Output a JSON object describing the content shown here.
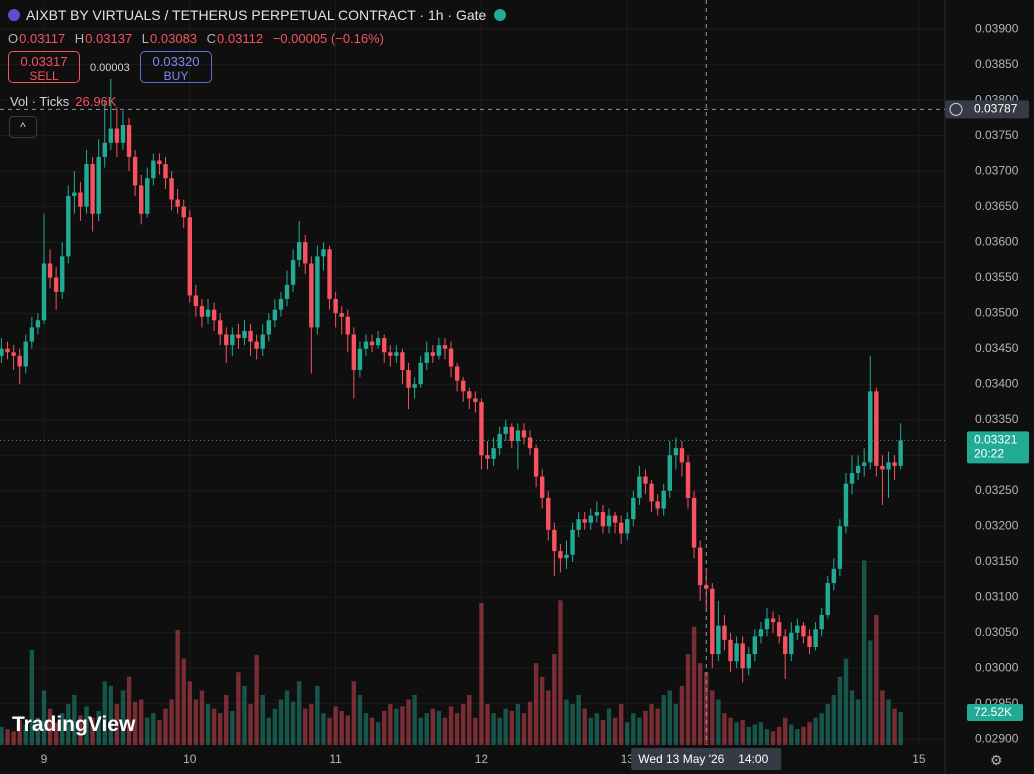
{
  "header": {
    "title": "AIXBT BY VIRTUALS / TETHERUS PERPETUAL CONTRACT · 1h · Gate",
    "ohlc": [
      {
        "label": "O",
        "value": "0.03117"
      },
      {
        "label": "H",
        "value": "0.03137"
      },
      {
        "label": "L",
        "value": "0.03083"
      },
      {
        "label": "C",
        "value": "0.03112"
      }
    ],
    "change": "−0.00005 (−0.16%)",
    "sell_price": "0.03317",
    "sell_label": "SELL",
    "spread": "0.00003",
    "buy_price": "0.03320",
    "buy_label": "BUY",
    "indicator": "Vol · Ticks",
    "indicator_value": "26.96K",
    "logo": "TradingView"
  },
  "chart_data": {
    "type": "candlestick",
    "up_color": "#22ab94",
    "down_color": "#f7525f",
    "grid": true,
    "xlim": [
      -0.24,
      155.3
    ],
    "xticks": [
      {
        "value": 7,
        "label": "9"
      },
      {
        "value": 31,
        "label": "10"
      },
      {
        "value": 55,
        "label": "11"
      },
      {
        "value": 79,
        "label": "12"
      },
      {
        "value": 103,
        "label": "13"
      },
      {
        "value": 151,
        "label": "15"
      }
    ],
    "ylim": [
      0.02892,
      0.03941
    ],
    "yticks": [
      {
        "value": 0.029,
        "label": "0.02900"
      },
      {
        "value": 0.0295,
        "label": "0.02950"
      },
      {
        "value": 0.03,
        "label": "0.03000"
      },
      {
        "value": 0.0305,
        "label": "0.03050"
      },
      {
        "value": 0.031,
        "label": "0.03100"
      },
      {
        "value": 0.0315,
        "label": "0.03150"
      },
      {
        "value": 0.032,
        "label": "0.03200"
      },
      {
        "value": 0.0325,
        "label": "0.03250"
      },
      {
        "value": 0.033,
        "label": "0.03300"
      },
      {
        "value": 0.0335,
        "label": "0.03350"
      },
      {
        "value": 0.034,
        "label": "0.03400"
      },
      {
        "value": 0.0345,
        "label": "0.03450"
      },
      {
        "value": 0.035,
        "label": "0.03500"
      },
      {
        "value": 0.0355,
        "label": "0.03550"
      },
      {
        "value": 0.036,
        "label": "0.03600"
      },
      {
        "value": 0.0365,
        "label": "0.03650"
      },
      {
        "value": 0.037,
        "label": "0.03700"
      },
      {
        "value": 0.0375,
        "label": "0.03750"
      },
      {
        "value": 0.038,
        "label": "0.03800"
      },
      {
        "value": 0.0385,
        "label": "0.03850"
      },
      {
        "value": 0.039,
        "label": "0.03900"
      }
    ],
    "y2lim": [
      0,
      420
    ],
    "open": [
      0.0344,
      0.0345,
      0.03445,
      0.0344,
      0.03425,
      0.0346,
      0.0348,
      0.0349,
      0.0357,
      0.0355,
      0.0353,
      0.0358,
      0.03665,
      0.0367,
      0.0365,
      0.0371,
      0.0364,
      0.0372,
      0.0374,
      0.0376,
      0.0374,
      0.03765,
      0.0372,
      0.0368,
      0.0364,
      0.0369,
      0.03715,
      0.0371,
      0.0369,
      0.0366,
      0.0365,
      0.03635,
      0.03525,
      0.0351,
      0.03495,
      0.03505,
      0.0349,
      0.0347,
      0.03455,
      0.0347,
      0.03465,
      0.03475,
      0.0346,
      0.0345,
      0.0347,
      0.0349,
      0.03505,
      0.0352,
      0.0354,
      0.03575,
      0.036,
      0.0357,
      0.0348,
      0.0358,
      0.0359,
      0.0352,
      0.035,
      0.03495,
      0.0347,
      0.0342,
      0.0345,
      0.0346,
      0.03455,
      0.03465,
      0.03445,
      0.0344,
      0.03445,
      0.0342,
      0.03395,
      0.034,
      0.0343,
      0.03445,
      0.0344,
      0.03455,
      0.0345,
      0.03425,
      0.03405,
      0.0339,
      0.0338,
      0.03375,
      0.033,
      0.03295,
      0.0331,
      0.0333,
      0.0334,
      0.0332,
      0.03335,
      0.03325,
      0.0331,
      0.0327,
      0.0324,
      0.03195,
      0.03165,
      0.03155,
      0.0316,
      0.03195,
      0.0321,
      0.03205,
      0.03215,
      0.0322,
      0.032,
      0.03215,
      0.03205,
      0.0319,
      0.0321,
      0.0324,
      0.0327,
      0.0326,
      0.03235,
      0.03225,
      0.0325,
      0.033,
      0.0331,
      0.0329,
      0.0324,
      0.0317,
      0.03117,
      0.03112,
      0.0302,
      0.0306,
      0.0304,
      0.0301,
      0.03035,
      0.03,
      0.0302,
      0.03045,
      0.03055,
      0.0307,
      0.03065,
      0.03045,
      0.0302,
      0.0305,
      0.0306,
      0.03045,
      0.0303,
      0.03055,
      0.03075,
      0.0312,
      0.0314,
      0.032,
      0.0326,
      0.03275,
      0.03285,
      0.0329,
      0.0339,
      0.03285,
      0.0328,
      0.0329,
      0.03285
    ],
    "high": [
      0.03465,
      0.0346,
      0.03455,
      0.0345,
      0.0347,
      0.03495,
      0.035,
      0.0364,
      0.0359,
      0.03565,
      0.036,
      0.0368,
      0.037,
      0.03685,
      0.0373,
      0.0372,
      0.03745,
      0.038,
      0.0383,
      0.0379,
      0.03785,
      0.03775,
      0.0373,
      0.03695,
      0.03705,
      0.03725,
      0.03725,
      0.0372,
      0.037,
      0.03675,
      0.0366,
      0.03645,
      0.0354,
      0.0352,
      0.0352,
      0.03515,
      0.035,
      0.0348,
      0.0348,
      0.03485,
      0.0349,
      0.03485,
      0.0347,
      0.03485,
      0.035,
      0.0352,
      0.0353,
      0.0356,
      0.0359,
      0.0363,
      0.0361,
      0.0358,
      0.03595,
      0.036,
      0.03595,
      0.0353,
      0.0351,
      0.03505,
      0.0348,
      0.0346,
      0.0347,
      0.0347,
      0.03475,
      0.0347,
      0.03455,
      0.03455,
      0.0345,
      0.0343,
      0.0341,
      0.0344,
      0.0346,
      0.03455,
      0.03465,
      0.03465,
      0.0346,
      0.0343,
      0.0341,
      0.03395,
      0.0339,
      0.0338,
      0.0332,
      0.03325,
      0.0334,
      0.0335,
      0.03345,
      0.03345,
      0.03345,
      0.03335,
      0.03315,
      0.0328,
      0.0325,
      0.03205,
      0.03175,
      0.0318,
      0.03205,
      0.0322,
      0.0322,
      0.03225,
      0.03235,
      0.0323,
      0.03225,
      0.0322,
      0.03215,
      0.0322,
      0.0325,
      0.03285,
      0.0328,
      0.03265,
      0.03245,
      0.0326,
      0.0332,
      0.03325,
      0.0332,
      0.033,
      0.0325,
      0.0318,
      0.03137,
      0.0312,
      0.03095,
      0.03075,
      0.0305,
      0.03045,
      0.03045,
      0.0303,
      0.03055,
      0.03065,
      0.03085,
      0.0308,
      0.03075,
      0.03055,
      0.03065,
      0.0307,
      0.03065,
      0.03055,
      0.03065,
      0.03085,
      0.0313,
      0.03155,
      0.0321,
      0.03275,
      0.033,
      0.033,
      0.0331,
      0.0344,
      0.03395,
      0.033,
      0.03305,
      0.033,
      0.03345
    ],
    "low": [
      0.0343,
      0.03435,
      0.0342,
      0.034,
      0.03415,
      0.0345,
      0.0347,
      0.03485,
      0.03535,
      0.03505,
      0.0352,
      0.0357,
      0.0364,
      0.0363,
      0.0364,
      0.03615,
      0.0363,
      0.03705,
      0.0373,
      0.0372,
      0.0373,
      0.037,
      0.03665,
      0.03625,
      0.03635,
      0.0368,
      0.03695,
      0.03675,
      0.03645,
      0.0364,
      0.0362,
      0.03515,
      0.03495,
      0.0348,
      0.03485,
      0.03475,
      0.03455,
      0.0343,
      0.0344,
      0.0345,
      0.03455,
      0.0344,
      0.03435,
      0.0344,
      0.0346,
      0.0348,
      0.03495,
      0.0351,
      0.0353,
      0.03565,
      0.03555,
      0.03415,
      0.0347,
      0.0356,
      0.03505,
      0.0348,
      0.0347,
      0.03445,
      0.0338,
      0.0341,
      0.0344,
      0.03445,
      0.0345,
      0.0343,
      0.03425,
      0.0343,
      0.034,
      0.03365,
      0.0338,
      0.03395,
      0.0342,
      0.0343,
      0.03435,
      0.03435,
      0.0341,
      0.0339,
      0.03375,
      0.03365,
      0.0336,
      0.0328,
      0.0328,
      0.03285,
      0.033,
      0.0332,
      0.0331,
      0.0328,
      0.03315,
      0.033,
      0.03255,
      0.03225,
      0.0318,
      0.0313,
      0.03135,
      0.0314,
      0.0315,
      0.03185,
      0.03195,
      0.03195,
      0.03205,
      0.0319,
      0.0319,
      0.0319,
      0.03175,
      0.0318,
      0.032,
      0.0323,
      0.03245,
      0.0322,
      0.03215,
      0.03215,
      0.0324,
      0.0328,
      0.0327,
      0.03225,
      0.03155,
      0.03095,
      0.03083,
      0.03,
      0.0301,
      0.03025,
      0.02995,
      0.03,
      0.0298,
      0.0299,
      0.0301,
      0.03035,
      0.03045,
      0.0305,
      0.03035,
      0.02985,
      0.0301,
      0.0304,
      0.03035,
      0.0302,
      0.03025,
      0.03045,
      0.0307,
      0.0311,
      0.0313,
      0.0319,
      0.03245,
      0.03265,
      0.0327,
      0.0328,
      0.0327,
      0.0323,
      0.0324,
      0.03265,
      0.0328
    ],
    "close": [
      0.0345,
      0.03445,
      0.0344,
      0.03425,
      0.0346,
      0.0348,
      0.0349,
      0.0357,
      0.0355,
      0.0353,
      0.0358,
      0.03665,
      0.0367,
      0.0365,
      0.0371,
      0.0364,
      0.0372,
      0.0374,
      0.0376,
      0.0374,
      0.03765,
      0.0372,
      0.0368,
      0.0364,
      0.0369,
      0.03715,
      0.0371,
      0.0369,
      0.0366,
      0.0365,
      0.03635,
      0.03525,
      0.0351,
      0.03495,
      0.03505,
      0.0349,
      0.0347,
      0.03455,
      0.0347,
      0.03465,
      0.03475,
      0.0346,
      0.0345,
      0.0347,
      0.0349,
      0.03505,
      0.0352,
      0.0354,
      0.03575,
      0.036,
      0.0357,
      0.0348,
      0.0358,
      0.0359,
      0.0352,
      0.035,
      0.03495,
      0.0347,
      0.0342,
      0.0345,
      0.0346,
      0.03455,
      0.03465,
      0.03445,
      0.0344,
      0.03445,
      0.0342,
      0.03395,
      0.034,
      0.0343,
      0.03445,
      0.0344,
      0.03455,
      0.0345,
      0.03425,
      0.03405,
      0.0339,
      0.0338,
      0.03375,
      0.033,
      0.03295,
      0.0331,
      0.0333,
      0.0334,
      0.0332,
      0.03335,
      0.03325,
      0.0331,
      0.0327,
      0.0324,
      0.03195,
      0.03165,
      0.03155,
      0.0316,
      0.03195,
      0.0321,
      0.03205,
      0.03215,
      0.0322,
      0.032,
      0.03215,
      0.03205,
      0.0319,
      0.0321,
      0.0324,
      0.0327,
      0.0326,
      0.03235,
      0.03225,
      0.0325,
      0.033,
      0.0331,
      0.0329,
      0.0324,
      0.0317,
      0.03117,
      0.03112,
      0.0302,
      0.0306,
      0.0304,
      0.0301,
      0.03035,
      0.03,
      0.0302,
      0.03045,
      0.03055,
      0.0307,
      0.03065,
      0.03045,
      0.0302,
      0.0305,
      0.0306,
      0.03045,
      0.0303,
      0.03055,
      0.03075,
      0.0312,
      0.0314,
      0.032,
      0.0326,
      0.03275,
      0.03285,
      0.0329,
      0.0339,
      0.03285,
      0.0328,
      0.0329,
      0.03285,
      0.03321
    ],
    "volume": [
      40,
      35,
      30,
      55,
      45,
      209,
      60,
      120,
      80,
      50,
      70,
      90,
      110,
      65,
      85,
      60,
      75,
      140,
      130,
      90,
      120,
      150,
      95,
      100,
      60,
      70,
      55,
      80,
      100,
      253,
      190,
      140,
      100,
      120,
      90,
      80,
      70,
      110,
      75,
      160,
      130,
      90,
      198,
      110,
      60,
      80,
      100,
      120,
      95,
      140,
      80,
      90,
      130,
      70,
      60,
      85,
      75,
      65,
      140,
      110,
      70,
      60,
      50,
      75,
      90,
      80,
      85,
      100,
      110,
      60,
      70,
      80,
      75,
      60,
      85,
      70,
      90,
      110,
      60,
      312,
      90,
      70,
      60,
      80,
      75,
      90,
      70,
      95,
      180,
      150,
      120,
      200,
      318,
      100,
      90,
      110,
      80,
      60,
      70,
      55,
      80,
      60,
      90,
      50,
      70,
      60,
      75,
      90,
      80,
      110,
      120,
      90,
      130,
      200,
      260,
      180,
      160,
      120,
      100,
      70,
      60,
      50,
      55,
      40,
      45,
      50,
      35,
      30,
      40,
      60,
      45,
      35,
      40,
      50,
      60,
      70,
      90,
      110,
      150,
      190,
      120,
      100,
      406,
      230,
      286,
      120,
      100,
      80,
      72.52
    ],
    "volume_label": "72.52K",
    "current_price": {
      "value": 0.03321,
      "label": "0.03321"
    },
    "countdown": "20:22",
    "crosshair": {
      "x": 116,
      "price": {
        "value": 0.03787,
        "label": "0.03787"
      },
      "date_label": "Wed 13 May '26",
      "time_label": "14:00"
    }
  }
}
